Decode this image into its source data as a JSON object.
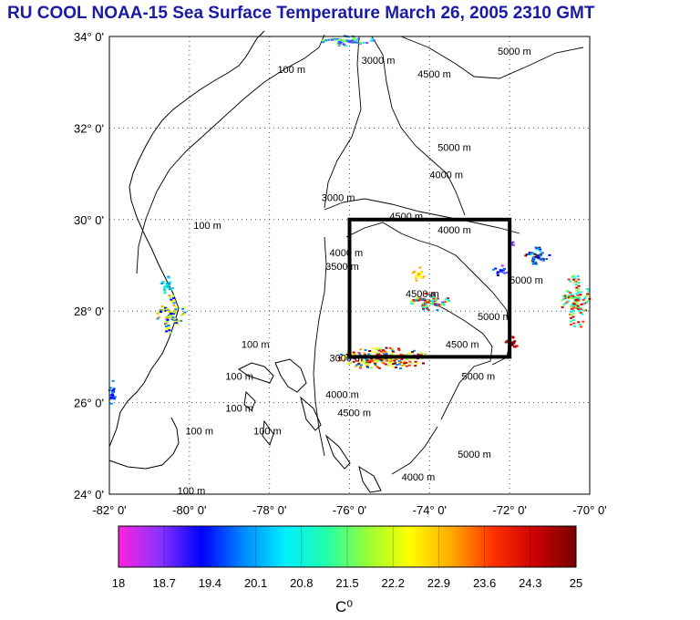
{
  "title": "RU COOL  NOAA-15 Sea Surface Temperature March 26, 2005 2310 GMT",
  "map": {
    "lon_range": [
      -82,
      -70
    ],
    "lat_range": [
      24,
      34
    ],
    "x_ticks": [
      "-82° 0'",
      "-80° 0'",
      "-78° 0'",
      "-76° 0'",
      "-74° 0'",
      "-72° 0'",
      "-70° 0'"
    ],
    "y_ticks": [
      "34° 0'",
      "32° 0'",
      "30° 0'",
      "28° 0'",
      "26° 0'",
      "24° 0'"
    ],
    "grid": "dotted",
    "study_box": {
      "lon": [
        -76,
        -72
      ],
      "lat": [
        27,
        30
      ]
    },
    "contour_labels": [
      {
        "text": "100 m",
        "lon": -77.8,
        "lat": 33.2
      },
      {
        "text": "3000 m",
        "lon": -75.7,
        "lat": 33.4
      },
      {
        "text": "4500 m",
        "lon": -74.3,
        "lat": 33.1
      },
      {
        "text": "5000 m",
        "lon": -72.3,
        "lat": 33.6
      },
      {
        "text": "5000 m",
        "lon": -73.8,
        "lat": 31.5
      },
      {
        "text": "4000 m",
        "lon": -74.0,
        "lat": 30.9
      },
      {
        "text": "3000 m",
        "lon": -76.7,
        "lat": 30.4
      },
      {
        "text": "100 m",
        "lon": -79.9,
        "lat": 29.8
      },
      {
        "text": "100 m",
        "lon": -78.7,
        "lat": 27.2
      },
      {
        "text": "100 m",
        "lon": -79.1,
        "lat": 26.5
      },
      {
        "text": "100 m",
        "lon": -79.1,
        "lat": 25.8
      },
      {
        "text": "100 m",
        "lon": -78.4,
        "lat": 25.3
      },
      {
        "text": "100 m",
        "lon": -80.1,
        "lat": 25.3
      },
      {
        "text": "100 m",
        "lon": -80.3,
        "lat": 24.0
      },
      {
        "text": "3000 m",
        "lon": -76.5,
        "lat": 26.9
      },
      {
        "text": "4000 m",
        "lon": -76.6,
        "lat": 26.1
      },
      {
        "text": "4500 m",
        "lon": -76.3,
        "lat": 25.7
      },
      {
        "text": "4000 m",
        "lon": -74.7,
        "lat": 24.3
      },
      {
        "text": "5000 m",
        "lon": -73.3,
        "lat": 24.8
      },
      {
        "text": "5000 m",
        "lon": -72.8,
        "lat": 27.8
      },
      {
        "text": "4500 m",
        "lon": -73.6,
        "lat": 27.2
      },
      {
        "text": "5000 m",
        "lon": -73.2,
        "lat": 26.5
      },
      {
        "text": "4500 m",
        "lon": -74.6,
        "lat": 28.3
      },
      {
        "text": "4000 m",
        "lon": -73.8,
        "lat": 29.7
      },
      {
        "text": "4500 m",
        "lon": -75.0,
        "lat": 30.0
      },
      {
        "text": "4000 m",
        "lon": -76.5,
        "lat": 29.2
      },
      {
        "text": "3500 m",
        "lon": -76.6,
        "lat": 28.9
      },
      {
        "text": "5000 m",
        "lon": -72.0,
        "lat": 28.6
      }
    ]
  },
  "colorbar": {
    "ticks": [
      "18",
      "18.7",
      "19.4",
      "20.1",
      "20.8",
      "21.5",
      "22.2",
      "22.9",
      "23.6",
      "24.3",
      "25"
    ],
    "range": [
      18,
      25
    ],
    "units": "C⁰",
    "colors": [
      "#ff22dd",
      "#8833ff",
      "#0000ff",
      "#0088ff",
      "#00eeff",
      "#22ffaa",
      "#99ff33",
      "#ffff00",
      "#ffaa00",
      "#ff3300",
      "#cc0000",
      "#770000"
    ]
  }
}
